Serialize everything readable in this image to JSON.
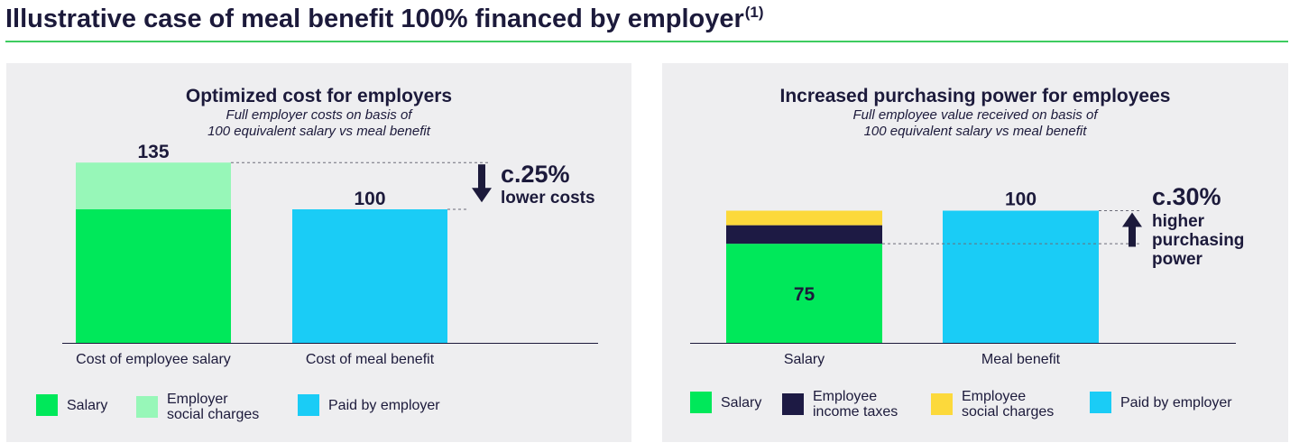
{
  "page": {
    "title": "Illustrative case of meal benefit 100% financed by employer",
    "title_footnote": "(1)"
  },
  "colors": {
    "salary": "#00e85a",
    "employer_social_charges": "#97f7b8",
    "paid_by_employer": "#1accf6",
    "employee_income_taxes": "#1d1a44",
    "employee_social_charges": "#fcd93b",
    "rule": "#3ecc5f",
    "text": "#1c1a3b",
    "panel_bg": "#eeeef0"
  },
  "chart_data": [
    {
      "type": "bar",
      "stacked": true,
      "title": "Optimized cost for employers",
      "subtitle": [
        "Full employer costs on basis of",
        "100 equivalent salary vs meal benefit"
      ],
      "categories": [
        "Cost of employee salary",
        "Cost of meal benefit"
      ],
      "series": [
        {
          "name": "Salary",
          "key": "salary",
          "values": [
            100,
            0
          ]
        },
        {
          "name": "Employer\nsocial charges",
          "key": "employer_social_charges",
          "values": [
            35,
            0
          ]
        },
        {
          "name": "Paid by employer",
          "key": "paid_by_employer",
          "values": [
            0,
            100
          ]
        }
      ],
      "totals": [
        "135",
        "100"
      ],
      "annotation": {
        "value": "c.25%",
        "text": "lower costs",
        "direction": "down"
      },
      "ylim": [
        0,
        140
      ]
    },
    {
      "type": "bar",
      "stacked": true,
      "title": "Increased purchasing power for employees",
      "subtitle": [
        "Full employee value received on basis of",
        "100 equivalent salary vs meal benefit"
      ],
      "categories": [
        "Salary",
        "Meal benefit"
      ],
      "series": [
        {
          "name": "Salary",
          "key": "salary",
          "values": [
            75,
            0
          ]
        },
        {
          "name": "Employee\nincome taxes",
          "key": "employee_income_taxes",
          "values": [
            14,
            0
          ]
        },
        {
          "name": "Employee\nsocial charges",
          "key": "employee_social_charges",
          "values": [
            11,
            0
          ]
        },
        {
          "name": "Paid by employer",
          "key": "paid_by_employer",
          "values": [
            0,
            100
          ]
        }
      ],
      "segment_labels": [
        "75",
        "100"
      ],
      "annotation": {
        "value": "c.30%",
        "text": [
          "higher",
          "purchasing",
          "power"
        ],
        "direction": "up"
      },
      "ylim": [
        0,
        140
      ]
    }
  ]
}
